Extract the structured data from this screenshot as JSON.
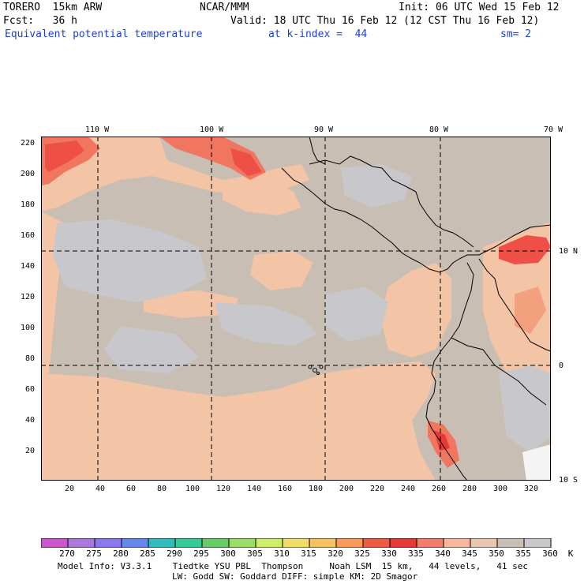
{
  "header": {
    "model": "TORERO  15km ARW",
    "center": "NCAR/MMM",
    "init": "Init: 06 UTC Wed 15 Feb 12",
    "fcst": "Fcst:   36 h",
    "valid": "Valid: 18 UTC Thu 16 Feb 12 (12 CST Thu 16 Feb 12)",
    "field": "Equivalent potential temperature",
    "level": "at k-index =  44",
    "smooth": "sm= 2"
  },
  "map": {
    "top_lon_labels": [
      "110 W",
      "100 W",
      "90 W",
      "80 W",
      "70 W"
    ],
    "right_lat_labels": [
      "10 N",
      "0",
      "10 S"
    ],
    "left_y_ticks": [
      "220",
      "200",
      "180",
      "160",
      "140",
      "120",
      "100",
      "80",
      "60",
      "40",
      "20"
    ],
    "bottom_x_ticks": [
      "20",
      "40",
      "60",
      "80",
      "100",
      "120",
      "140",
      "160",
      "180",
      "200",
      "220",
      "240",
      "260",
      "280",
      "300",
      "320"
    ],
    "colors": {
      "ocean_base": "#c8beb4",
      "cool": "#c8c8cc",
      "warm": "#f3c4a6",
      "hot1": "#f2a07e",
      "hot2": "#f07660",
      "hot3": "#ee5048",
      "hot4": "#e83838",
      "snow": "#f4f4f4"
    }
  },
  "colorbar": {
    "colors": [
      "#cc55cc",
      "#aa77dd",
      "#8877ee",
      "#6688ee",
      "#33bbbb",
      "#33cc99",
      "#66cc66",
      "#99dd66",
      "#ccee66",
      "#eedd66",
      "#f7c060",
      "#f79a5a",
      "#ef5a45",
      "#e83838",
      "#f37d6a",
      "#f7b79c",
      "#eac6b2",
      "#c8beb4",
      "#c8c8cc",
      "#ffffff"
    ],
    "labels": [
      "270",
      "275",
      "280",
      "285",
      "290",
      "295",
      "300",
      "305",
      "310",
      "315",
      "320",
      "325",
      "330",
      "335",
      "340",
      "345",
      "350",
      "355",
      "360",
      "K"
    ]
  },
  "footer": {
    "line1": "Model Info: V3.3.1    Tiedtke YSU PBL  Thompson     Noah LSM  15 km,   44 levels,   41 sec",
    "line2": "LW: Godd SW: Goddard DIFF: simple KM: 2D Smagor"
  }
}
